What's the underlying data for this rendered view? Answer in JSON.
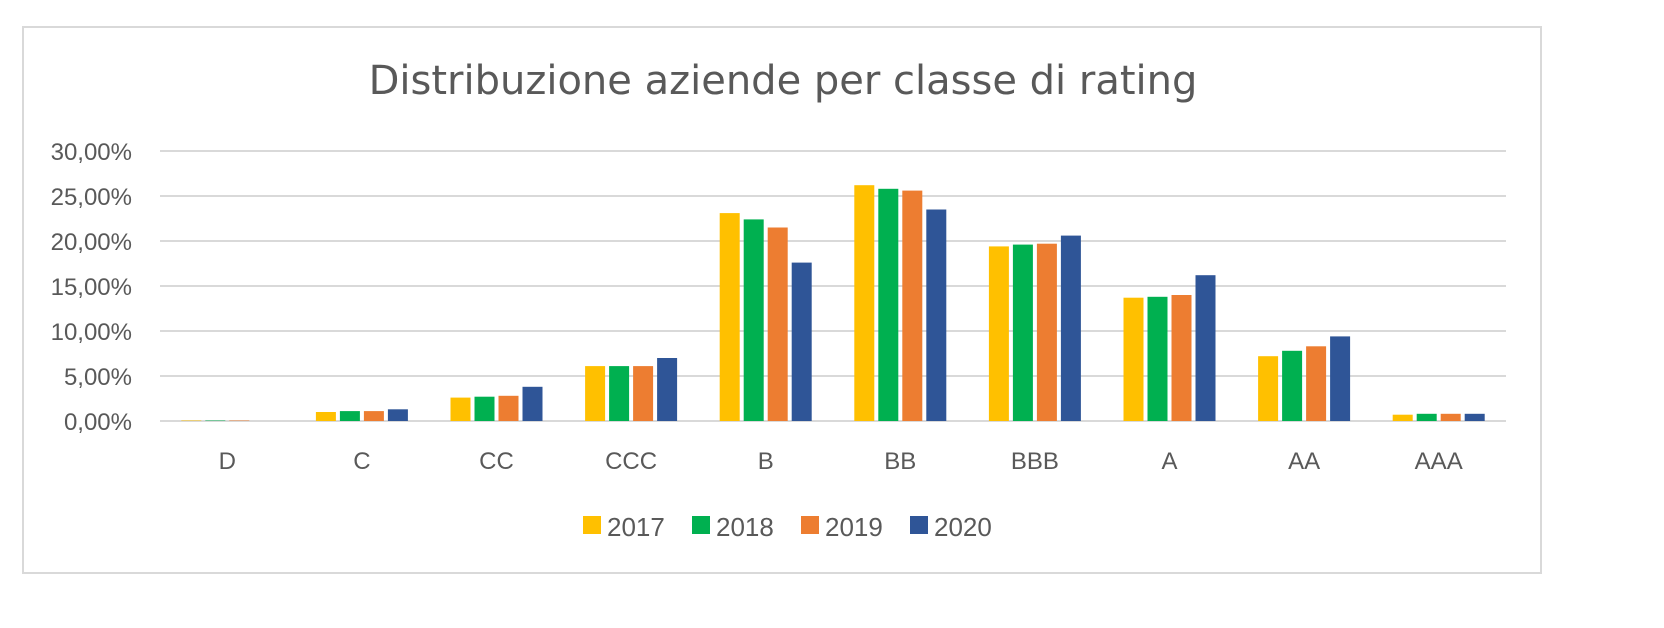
{
  "chart_data": {
    "type": "bar",
    "title": "Distribuzione aziende per classe di rating",
    "xlabel": "",
    "ylabel": "",
    "categories": [
      "D",
      "C",
      "CC",
      "CCC",
      "B",
      "BB",
      "BBB",
      "A",
      "AA",
      "AAA"
    ],
    "ylim": [
      0,
      30
    ],
    "yticks": [
      0,
      5,
      10,
      15,
      20,
      25,
      30
    ],
    "ytick_labels": [
      "0,00%",
      "5,00%",
      "10,00%",
      "15,00%",
      "20,00%",
      "25,00%",
      "30,00%"
    ],
    "grid": true,
    "legend_position": "bottom",
    "series": [
      {
        "name": "2017",
        "color": "#FFC000",
        "values": [
          0.05,
          1.0,
          2.6,
          6.1,
          23.1,
          26.2,
          19.4,
          13.7,
          7.2,
          0.7
        ]
      },
      {
        "name": "2018",
        "color": "#00B050",
        "values": [
          0.05,
          1.1,
          2.7,
          6.1,
          22.4,
          25.8,
          19.6,
          13.8,
          7.8,
          0.8
        ]
      },
      {
        "name": "2019",
        "color": "#ED7D31",
        "values": [
          0.05,
          1.1,
          2.8,
          6.1,
          21.5,
          25.6,
          19.7,
          14.0,
          8.3,
          0.8
        ]
      },
      {
        "name": "2020",
        "color": "#2F5597",
        "values": [
          0.0,
          1.3,
          3.8,
          7.0,
          17.6,
          23.5,
          20.6,
          16.2,
          9.4,
          0.8
        ]
      }
    ]
  }
}
